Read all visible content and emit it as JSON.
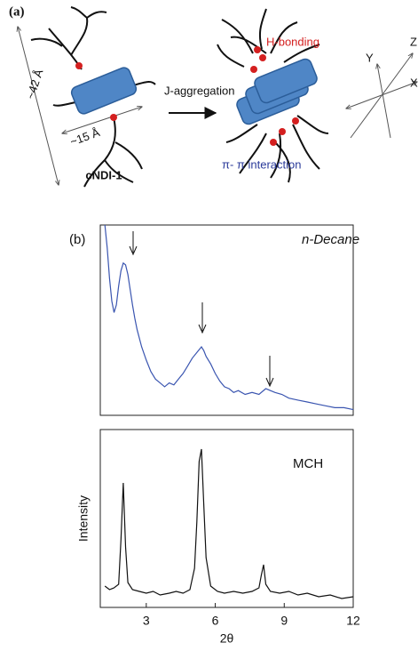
{
  "panel_a": {
    "label": "(a)",
    "length_long": "~42 Å",
    "length_short": "~15 Å",
    "molecule": "cNDI-1",
    "process": "J-aggregation",
    "h_bonding": "H-bonding",
    "pi_interaction": "π- π interaction",
    "axis_y": "Y",
    "axis_z": "Z",
    "axis_x": "X"
  },
  "panel_b_label": "(b)",
  "chart_data": [
    {
      "type": "line",
      "annotation": "n-Decane",
      "color": "#3a55b0",
      "xlim": [
        1,
        12
      ],
      "ylim": [
        0,
        100
      ],
      "x": [
        1.2,
        1.3,
        1.4,
        1.5,
        1.6,
        1.7,
        1.8,
        1.9,
        2.0,
        2.1,
        2.2,
        2.3,
        2.4,
        2.5,
        2.6,
        2.8,
        3.0,
        3.2,
        3.4,
        3.6,
        3.8,
        4.0,
        4.2,
        4.4,
        4.6,
        4.8,
        5.0,
        5.2,
        5.4,
        5.5,
        5.6,
        5.8,
        6.0,
        6.2,
        6.4,
        6.6,
        6.8,
        7.0,
        7.3,
        7.6,
        7.9,
        8.2,
        8.4,
        8.6,
        8.9,
        9.2,
        9.6,
        10.0,
        10.4,
        10.8,
        11.2,
        11.6,
        12.0
      ],
      "values": [
        100,
        88,
        72,
        60,
        54,
        58,
        68,
        76,
        80,
        79,
        74,
        66,
        58,
        51,
        45,
        36,
        29,
        23,
        19,
        17,
        15,
        17,
        16,
        19,
        22,
        26,
        30,
        33,
        36,
        34,
        31,
        27,
        22,
        18,
        15,
        14,
        12,
        13,
        11,
        12,
        11,
        14,
        13,
        12,
        11,
        9,
        8,
        7,
        6,
        5,
        4,
        4,
        3
      ]
    },
    {
      "type": "line",
      "annotation": "MCH",
      "color": "#111111",
      "xlim": [
        1,
        12
      ],
      "ylim": [
        0,
        100
      ],
      "xticks": [
        3,
        6,
        9,
        12
      ],
      "xlabel": "2θ",
      "ylabel": "Intensity",
      "x": [
        1.2,
        1.4,
        1.6,
        1.8,
        1.9,
        2.0,
        2.1,
        2.2,
        2.4,
        2.7,
        3.0,
        3.3,
        3.6,
        4.0,
        4.3,
        4.6,
        4.9,
        5.1,
        5.2,
        5.3,
        5.4,
        5.5,
        5.6,
        5.8,
        6.1,
        6.4,
        6.8,
        7.2,
        7.6,
        7.9,
        8.0,
        8.1,
        8.2,
        8.4,
        8.8,
        9.2,
        9.6,
        10.0,
        10.5,
        11.0,
        11.5,
        12.0
      ],
      "values": [
        12,
        10,
        11,
        13,
        38,
        70,
        34,
        14,
        10,
        9,
        8,
        9,
        7,
        8,
        9,
        8,
        10,
        22,
        48,
        82,
        89,
        58,
        28,
        12,
        9,
        8,
        9,
        8,
        9,
        11,
        18,
        24,
        13,
        9,
        8,
        9,
        7,
        8,
        6,
        7,
        5,
        6
      ]
    }
  ]
}
